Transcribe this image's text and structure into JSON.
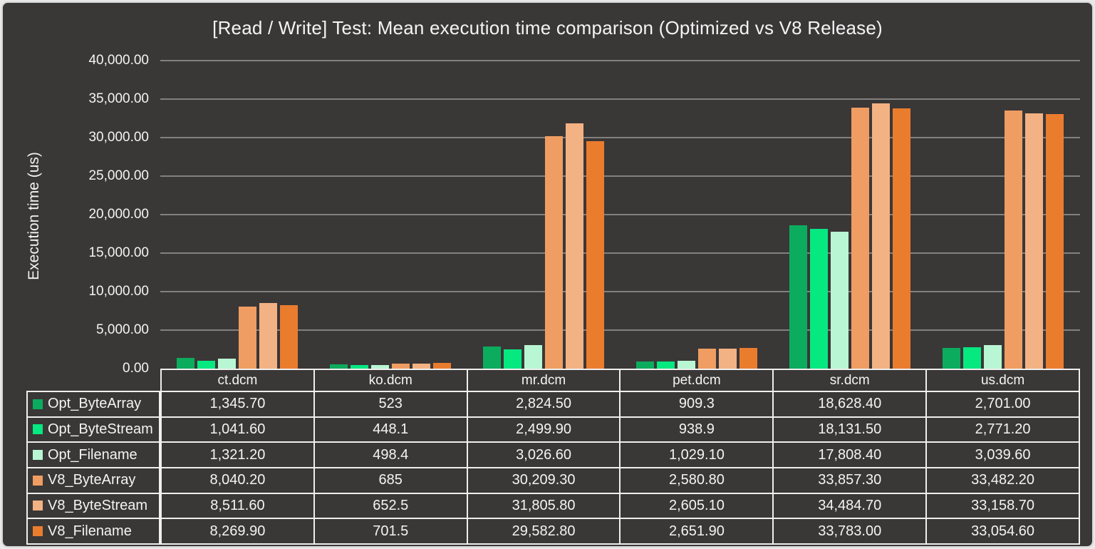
{
  "chart_data": {
    "type": "bar",
    "title": "[Read / Write] Test: Mean execution time comparison (Optimized vs V8 Release)",
    "ylabel": "Execution time (us)",
    "xlabel": "",
    "ylim": [
      0,
      40000
    ],
    "ytick_interval": 5000,
    "ytick_labels": [
      "40,000.00",
      "35,000.00",
      "30,000.00",
      "25,000.00",
      "20,000.00",
      "15,000.00",
      "10,000.00",
      "5,000.00",
      "0.00"
    ],
    "grid": true,
    "legend_position": "table-left",
    "categories": [
      "ct.dcm",
      "ko.dcm",
      "mr.dcm",
      "pet.dcm",
      "sr.dcm",
      "us.dcm"
    ],
    "series": [
      {
        "name": "Opt_ByteArray",
        "color": "#0CAC5E",
        "values": [
          1345.7,
          523,
          2824.5,
          909.3,
          18628.4,
          2701.0
        ],
        "display": [
          "1,345.70",
          "523",
          "2,824.50",
          "909.3",
          "18,628.40",
          "2,701.00"
        ]
      },
      {
        "name": "Opt_ByteStream",
        "color": "#06E880",
        "values": [
          1041.6,
          448.1,
          2499.9,
          938.9,
          18131.5,
          2771.2
        ],
        "display": [
          "1,041.60",
          "448.1",
          "2,499.90",
          "938.9",
          "18,131.50",
          "2,771.20"
        ]
      },
      {
        "name": "Opt_Filename",
        "color": "#B9F6D3",
        "values": [
          1321.2,
          498.4,
          3026.6,
          1029.1,
          17808.4,
          3039.6
        ],
        "display": [
          "1,321.20",
          "498.4",
          "3,026.60",
          "1,029.10",
          "17,808.40",
          "3,039.60"
        ]
      },
      {
        "name": "V8_ByteArray",
        "color": "#EF9D62",
        "values": [
          8040.2,
          685,
          30209.3,
          2580.8,
          33857.3,
          33482.2
        ],
        "display": [
          "8,040.20",
          "685",
          "30,209.30",
          "2,580.80",
          "33,857.30",
          "33,482.20"
        ]
      },
      {
        "name": "V8_ByteStream",
        "color": "#F3B283",
        "values": [
          8511.6,
          652.5,
          31805.8,
          2605.1,
          34484.7,
          33158.7
        ],
        "display": [
          "8,511.60",
          "652.5",
          "31,805.80",
          "2,605.10",
          "34,484.70",
          "33,158.70"
        ]
      },
      {
        "name": "V8_Filename",
        "color": "#EA7C2E",
        "values": [
          8269.9,
          701.5,
          29582.8,
          2651.9,
          33783.0,
          33054.6
        ],
        "display": [
          "8,269.90",
          "701.5",
          "29,582.80",
          "2,651.90",
          "33,783.00",
          "33,054.60"
        ]
      }
    ]
  },
  "colors": {
    "background": "#3A3737",
    "gridline": "#838080",
    "table_border": "#EFEFEF",
    "text": "#F4F4F4",
    "frame_border": "#D7D7D7"
  }
}
